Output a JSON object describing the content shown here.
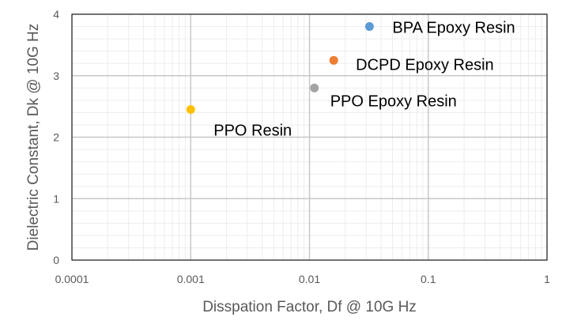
{
  "chart_data": {
    "type": "scatter",
    "title": "",
    "xlabel": "Disspation Factor, Df @ 10G Hz",
    "ylabel": "Dielectric Constant, Dk @ 10G Hz",
    "x_scale": "log",
    "xlim": [
      0.0001,
      1
    ],
    "ylim": [
      0,
      4
    ],
    "x_ticks": [
      "0.0001",
      "0.001",
      "0.01",
      "0.1",
      "1"
    ],
    "y_ticks": [
      "0",
      "1",
      "2",
      "3",
      "4"
    ],
    "grid": true,
    "legend": "none",
    "points": [
      {
        "label": "BPA Epoxy Resin",
        "x": 0.032,
        "y": 3.8,
        "color": "#5B9BD5"
      },
      {
        "label": "DCPD Epoxy Resin",
        "x": 0.016,
        "y": 3.25,
        "color": "#ED7D31"
      },
      {
        "label": "PPO Epoxy Resin",
        "x": 0.011,
        "y": 2.8,
        "color": "#A5A5A5"
      },
      {
        "label": "PPO Resin",
        "x": 0.001,
        "y": 2.45,
        "color": "#FFC000"
      }
    ]
  }
}
